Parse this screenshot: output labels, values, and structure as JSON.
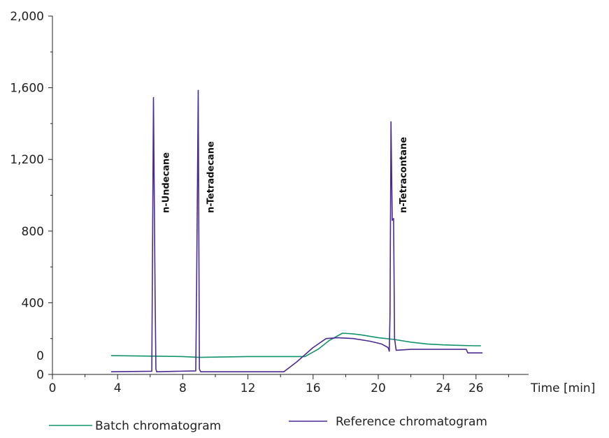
{
  "chart_data": {
    "type": "line",
    "title": "",
    "xlabel": "Time [min]",
    "ylabel": "",
    "xlim": [
      0,
      29
    ],
    "ylim": [
      0,
      2000
    ],
    "x_ticks": [
      0,
      4,
      8,
      12,
      16,
      20,
      24,
      26
    ],
    "x_tick_labels": [
      "0",
      "4",
      "8",
      "12",
      "16",
      "20",
      "24",
      "26"
    ],
    "y_ticks": [
      0,
      400,
      800,
      1200,
      1600,
      2000
    ],
    "y_tick_labels": [
      "0",
      "400",
      "800",
      "1,200",
      "1,600",
      "2,000"
    ],
    "secondary_zero_label": "0",
    "secondary_zero_value": 105,
    "secondary_zero_color": "#13936c",
    "grid": false,
    "legend_position": "bottom",
    "series": [
      {
        "name": "Batch chromatogram",
        "color": "#13936c",
        "points": [
          [
            3.6,
            105
          ],
          [
            8,
            100
          ],
          [
            9,
            95
          ],
          [
            12,
            100
          ],
          [
            15.5,
            100
          ],
          [
            16.3,
            140
          ],
          [
            17,
            190
          ],
          [
            17.8,
            230
          ],
          [
            18.4,
            227
          ],
          [
            19,
            220
          ],
          [
            20,
            205
          ],
          [
            21,
            195
          ],
          [
            22,
            180
          ],
          [
            23,
            170
          ],
          [
            24,
            165
          ],
          [
            25,
            162
          ],
          [
            26,
            160
          ],
          [
            26.3,
            160
          ]
        ]
      },
      {
        "name": "Reference chromatogram",
        "color": "#4b2a92",
        "points": [
          [
            3.6,
            15
          ],
          [
            6.1,
            18
          ],
          [
            6.2,
            1545
          ],
          [
            6.3,
            450
          ],
          [
            6.35,
            30
          ],
          [
            6.4,
            15
          ],
          [
            8.8,
            20
          ],
          [
            8.85,
            490
          ],
          [
            8.95,
            1585
          ],
          [
            9.02,
            30
          ],
          [
            9.1,
            15
          ],
          [
            14.2,
            15
          ],
          [
            15,
            70
          ],
          [
            16,
            150
          ],
          [
            16.8,
            200
          ],
          [
            17.5,
            205
          ],
          [
            18.5,
            200
          ],
          [
            19.5,
            185
          ],
          [
            20.2,
            170
          ],
          [
            20.6,
            150
          ],
          [
            20.68,
            130
          ],
          [
            20.72,
            330
          ],
          [
            20.78,
            1410
          ],
          [
            20.86,
            860
          ],
          [
            20.94,
            870
          ],
          [
            21.0,
            200
          ],
          [
            21.1,
            135
          ],
          [
            22,
            140
          ],
          [
            24,
            140
          ],
          [
            25.4,
            140
          ],
          [
            25.5,
            120
          ],
          [
            26.4,
            120
          ]
        ]
      }
    ],
    "annotations": [
      {
        "text": "n-Undecane",
        "x": 6.2
      },
      {
        "text": "n-Tetradecane",
        "x": 8.95
      },
      {
        "text": "n-Tetracontane",
        "x": 20.78
      }
    ]
  }
}
